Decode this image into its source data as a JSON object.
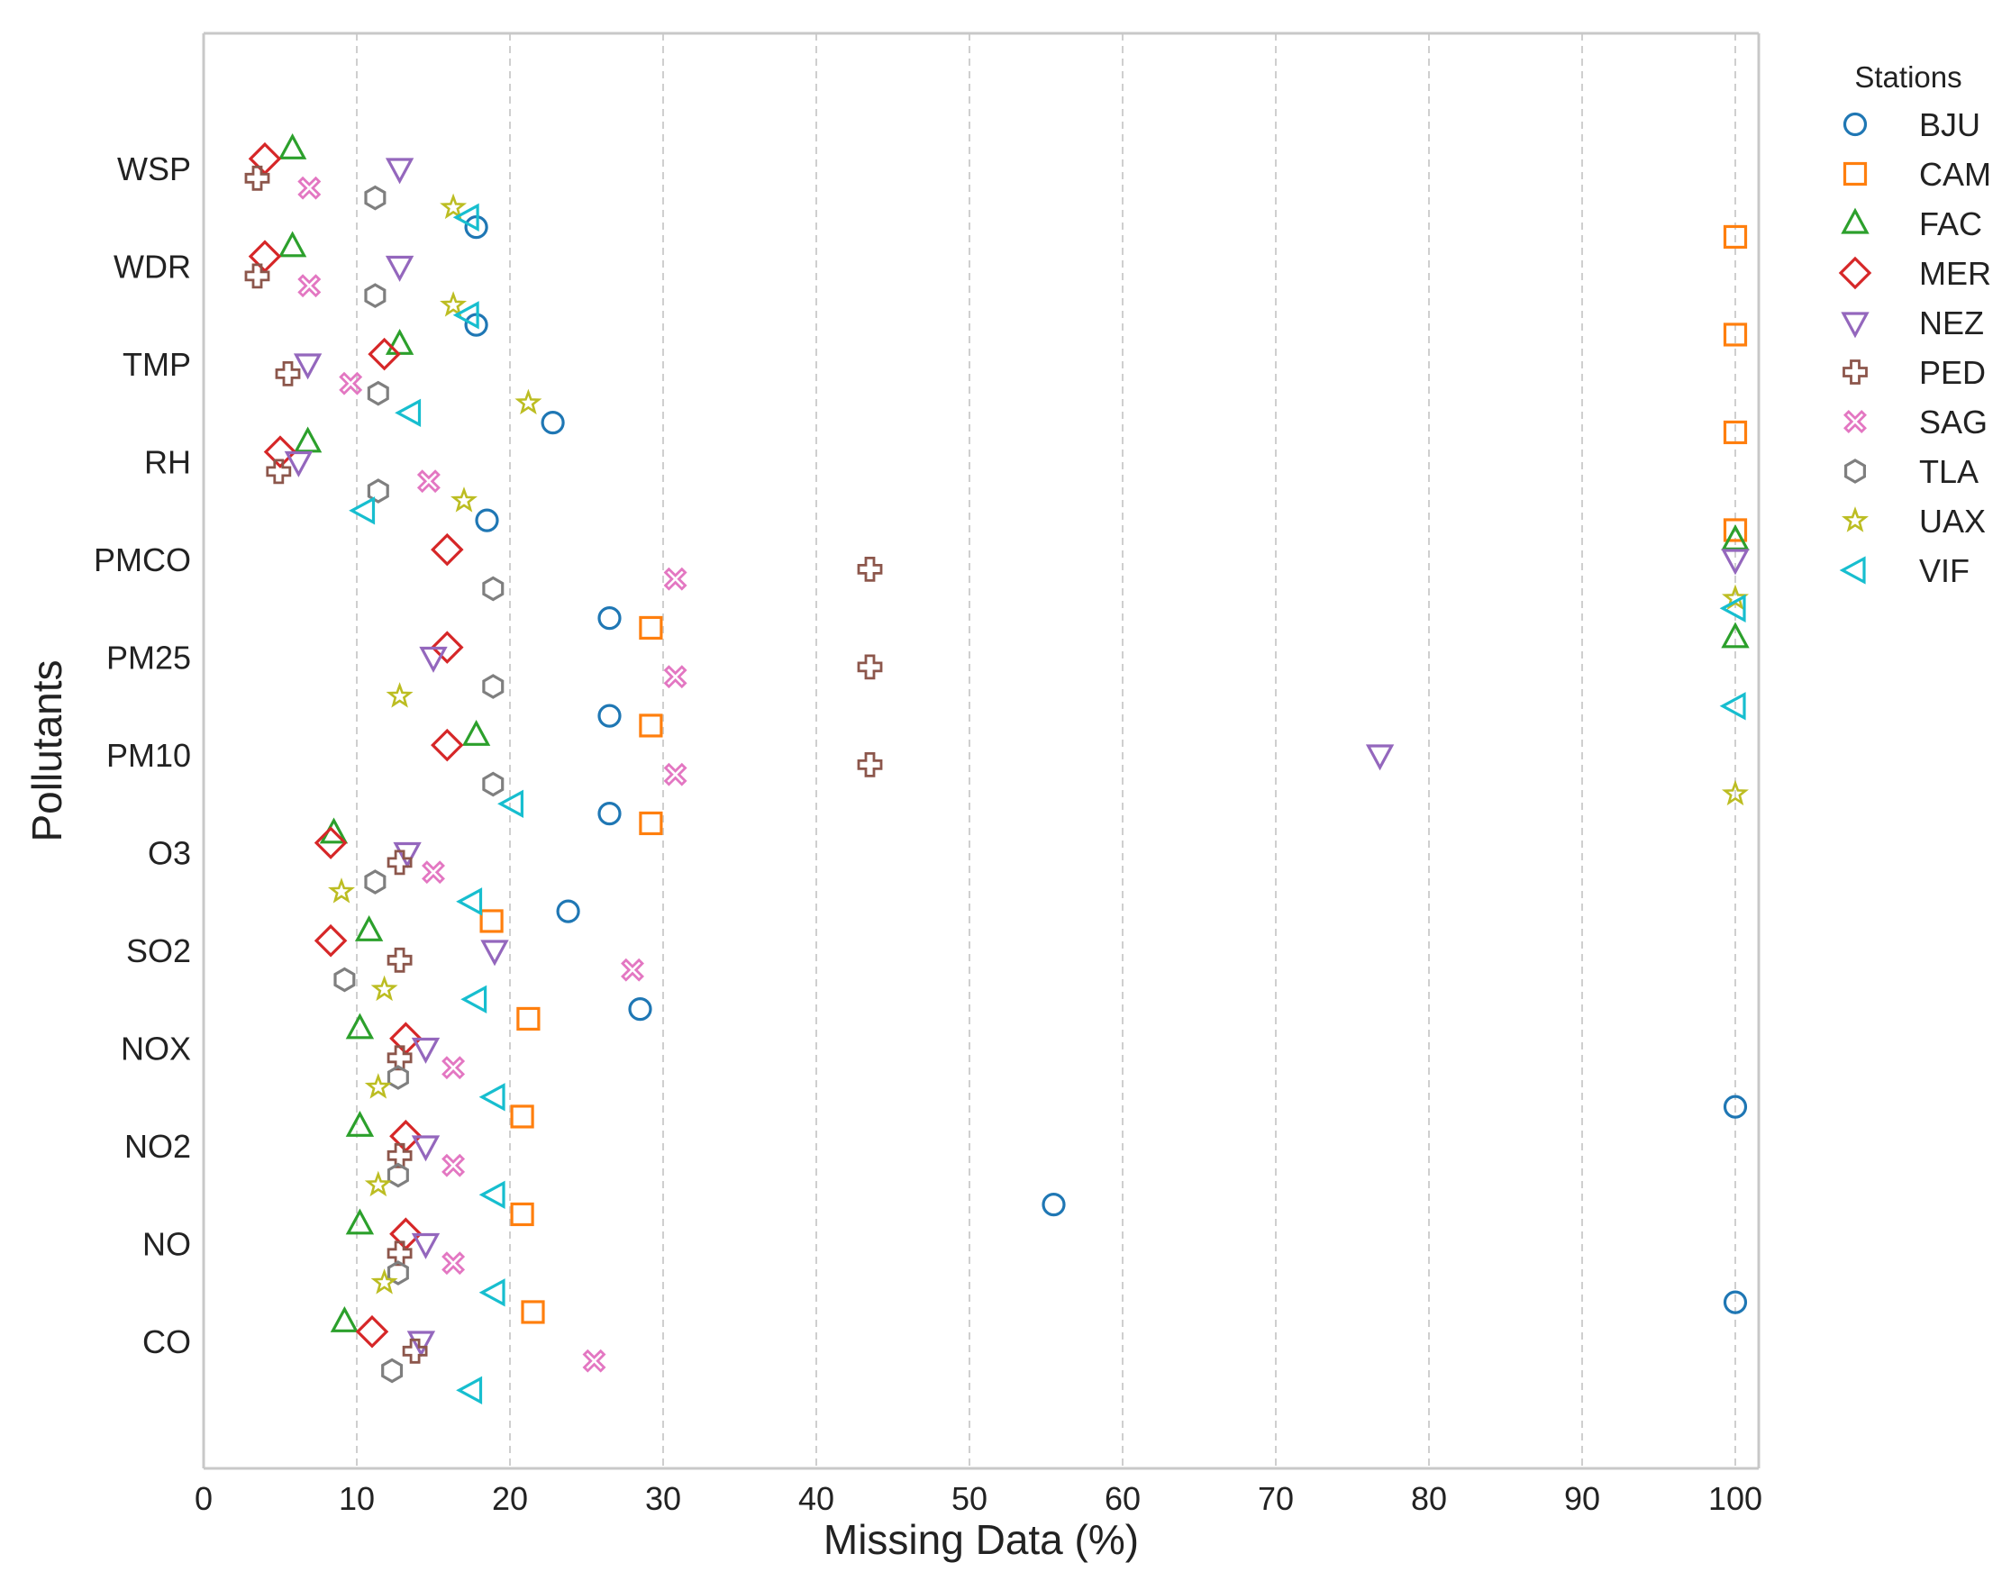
{
  "chart_data": {
    "type": "scatter",
    "title": "",
    "xlabel": "Missing Data (%)",
    "ylabel": "Pollutants",
    "xlim": [
      0,
      101.5
    ],
    "xticks": [
      0,
      10,
      20,
      30,
      40,
      50,
      60,
      70,
      80,
      90,
      100
    ],
    "xtick_labels": [
      "0",
      "10",
      "20",
      "30",
      "40",
      "50",
      "60",
      "70",
      "80",
      "90",
      "100"
    ],
    "grid": "vertical dashed",
    "categories": [
      "WSP",
      "WDR",
      "TMP",
      "RH",
      "PMCO",
      "PM25",
      "PM10",
      "O3",
      "SO2",
      "NOX",
      "NO2",
      "NO",
      "CO"
    ],
    "legend": {
      "title": "Stations",
      "placement": "outside right",
      "entries": [
        "BJU",
        "CAM",
        "FAC",
        "MER",
        "NEZ",
        "PED",
        "SAG",
        "TLA",
        "UAX",
        "VIF"
      ]
    },
    "series": [
      {
        "name": "BJU",
        "marker": "circle",
        "color": "#1f77b4",
        "offset": 0.4,
        "values": [
          null,
          17.8,
          17.8,
          22.8,
          18.5,
          26.5,
          26.5,
          26.5,
          23.8,
          28.5,
          100,
          55.5,
          100
        ]
      },
      {
        "name": "CAM",
        "marker": "square",
        "color": "#ff7f0e",
        "offset": 0.3,
        "values": [
          null,
          100,
          100,
          100,
          100,
          29.2,
          29.2,
          29.2,
          18.8,
          21.2,
          20.8,
          20.8,
          21.5
        ]
      },
      {
        "name": "FAC",
        "marker": "triangle-up",
        "color": "#2ca02c",
        "offset": 0.2,
        "values": [
          5.8,
          5.8,
          12.8,
          6.8,
          100,
          100,
          17.8,
          8.5,
          10.8,
          10.2,
          10.2,
          10.2,
          9.2
        ]
      },
      {
        "name": "MER",
        "marker": "diamond",
        "color": "#d62728",
        "offset": 0.1,
        "values": [
          4.0,
          4.0,
          11.8,
          5.0,
          15.9,
          15.9,
          15.9,
          8.3,
          8.3,
          13.2,
          13.2,
          13.2,
          11.0
        ]
      },
      {
        "name": "NEZ",
        "marker": "triangle-down",
        "color": "#9467bd",
        "offset": 0.0,
        "values": [
          12.8,
          12.8,
          6.8,
          6.2,
          100,
          15.0,
          76.8,
          13.3,
          19.0,
          14.5,
          14.5,
          14.5,
          14.2
        ]
      },
      {
        "name": "PED",
        "marker": "plus",
        "color": "#8c564b",
        "offset": -0.1,
        "values": [
          3.5,
          3.5,
          5.5,
          4.9,
          43.5,
          43.5,
          43.5,
          12.8,
          12.8,
          12.8,
          12.8,
          12.8,
          13.8
        ]
      },
      {
        "name": "SAG",
        "marker": "x",
        "color": "#e377c2",
        "offset": -0.2,
        "values": [
          6.9,
          6.9,
          9.6,
          14.7,
          30.8,
          30.8,
          30.8,
          15.0,
          28.0,
          16.3,
          16.3,
          16.3,
          25.5
        ]
      },
      {
        "name": "TLA",
        "marker": "hexagon",
        "color": "#7f7f7f",
        "offset": -0.3,
        "values": [
          11.2,
          11.2,
          11.4,
          11.4,
          18.9,
          18.9,
          18.9,
          11.2,
          9.2,
          12.7,
          12.7,
          12.7,
          12.3
        ]
      },
      {
        "name": "UAX",
        "marker": "star",
        "color": "#bcbd22",
        "offset": -0.4,
        "values": [
          16.3,
          16.3,
          21.2,
          17.0,
          100,
          12.8,
          100,
          9.0,
          11.8,
          11.4,
          11.4,
          11.8,
          null
        ]
      },
      {
        "name": "VIF",
        "marker": "triangle-left",
        "color": "#17becf",
        "offset": -0.5,
        "values": [
          17.3,
          17.3,
          13.5,
          10.5,
          100,
          100,
          20.2,
          17.5,
          17.8,
          19.0,
          19.0,
          19.0,
          17.5
        ]
      }
    ]
  }
}
